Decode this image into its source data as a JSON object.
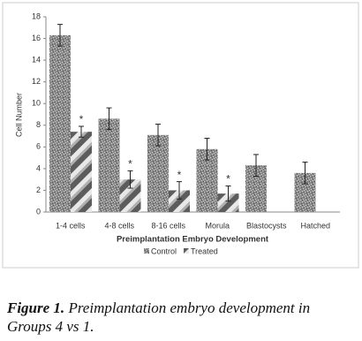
{
  "chart_data": {
    "type": "bar",
    "y_label": "Cell Number",
    "x_label": "Preimplantation Embryo Development",
    "categories": [
      "1-4 cells",
      "4-8 cells",
      "8-16 cells",
      "Morula",
      "Blastocysts",
      "Hatched"
    ],
    "series": [
      {
        "name": "Control",
        "color": "#8a8a8a",
        "values": [
          16.3,
          8.6,
          7.1,
          5.8,
          4.3,
          3.6
        ],
        "errors": [
          1.0,
          1.0,
          1.0,
          1.0,
          1.0,
          1.0
        ]
      },
      {
        "name": "Treated",
        "color": "#5c5c5c",
        "values": [
          7.4,
          3.0,
          2.0,
          1.7,
          null,
          null
        ],
        "errors": [
          0.5,
          0.8,
          0.8,
          0.7,
          null,
          null
        ],
        "significance": [
          "*",
          "*",
          "*",
          "*",
          null,
          null
        ]
      }
    ],
    "ylim": [
      0,
      18
    ],
    "yticks": [
      0,
      2,
      4,
      6,
      8,
      10,
      12,
      14,
      16,
      18
    ],
    "legend": "bottom"
  },
  "caption": {
    "label": "Figure 1.",
    "text": "Preimplantation embryo development in Groups 4 vs 1."
  }
}
